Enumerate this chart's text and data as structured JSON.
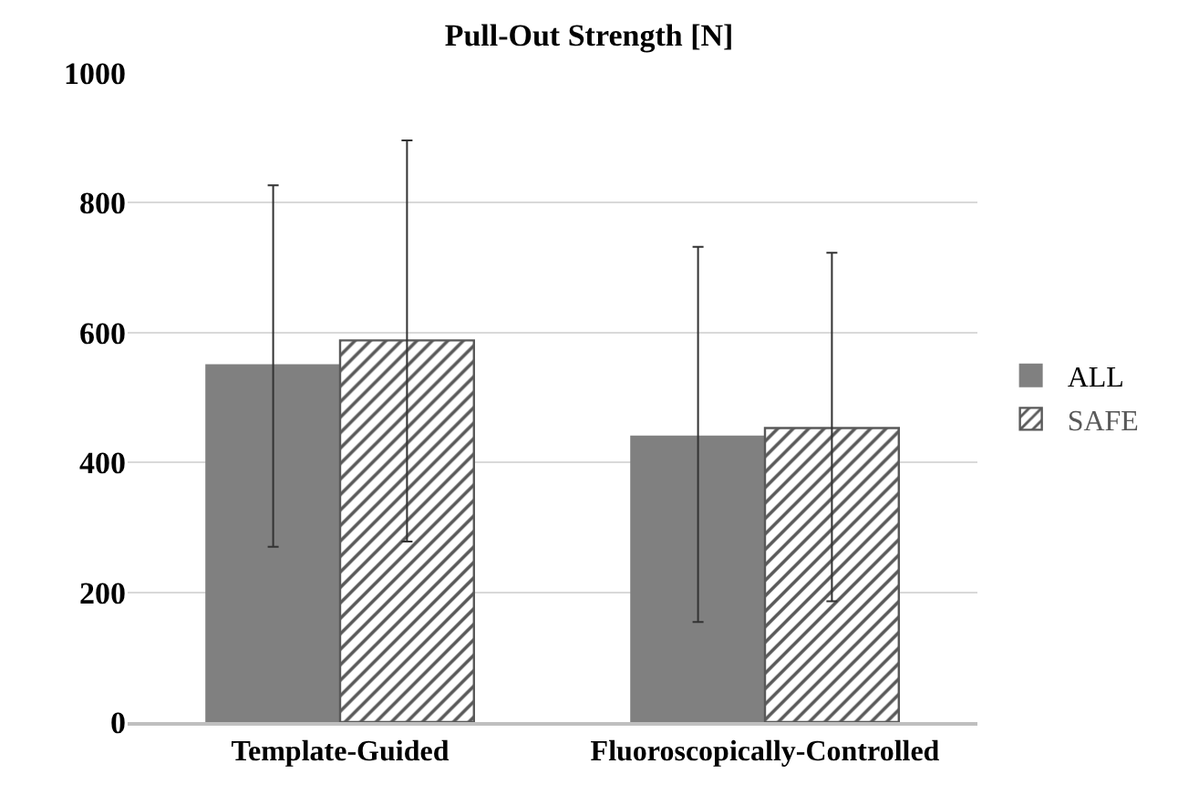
{
  "chart_data": {
    "type": "bar",
    "title": "Pull-Out Strength [N]",
    "categories": [
      "Template-Guided",
      "Fluoroscopically-Controlled"
    ],
    "series": [
      {
        "name": "ALL",
        "color": "#808080",
        "values": [
          550,
          440
        ],
        "errors": [
          [
            270,
            827
          ],
          [
            154,
            732
          ]
        ]
      },
      {
        "name": "SAFE",
        "color": "#595959",
        "values": [
          588,
          453
        ],
        "errors": [
          [
            278,
            896
          ],
          [
            186,
            723
          ]
        ]
      }
    ],
    "ylim": [
      0,
      1000
    ],
    "yticks": [
      0,
      200,
      400,
      600,
      800,
      1000
    ],
    "grid": "y",
    "legend": "right"
  }
}
